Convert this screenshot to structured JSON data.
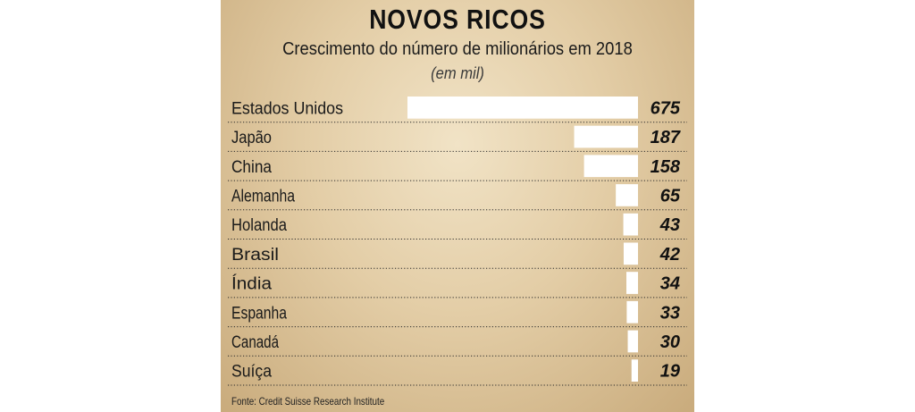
{
  "chart_data": {
    "type": "bar",
    "title": "NOVOS RICOS",
    "subtitle": "Crescimento do número de milionários em 2018",
    "unit": "(em mil)",
    "categories": [
      "Estados Unidos",
      "Japão",
      "China",
      "Alemanha",
      "Holanda",
      "Brasil",
      "Índia",
      "Espanha",
      "Canadá",
      "Suíça"
    ],
    "values": [
      675,
      187,
      158,
      65,
      43,
      42,
      34,
      33,
      30,
      19
    ],
    "value_labels": [
      "675",
      "187",
      "158",
      "65",
      "43",
      "42",
      "34",
      "33",
      "30",
      "19"
    ],
    "orientation": "horizontal",
    "bar_color": "#ffffff",
    "row_line_color": "#2a2a2a",
    "source": "Fonte: Credit Suisse Research Institute"
  }
}
